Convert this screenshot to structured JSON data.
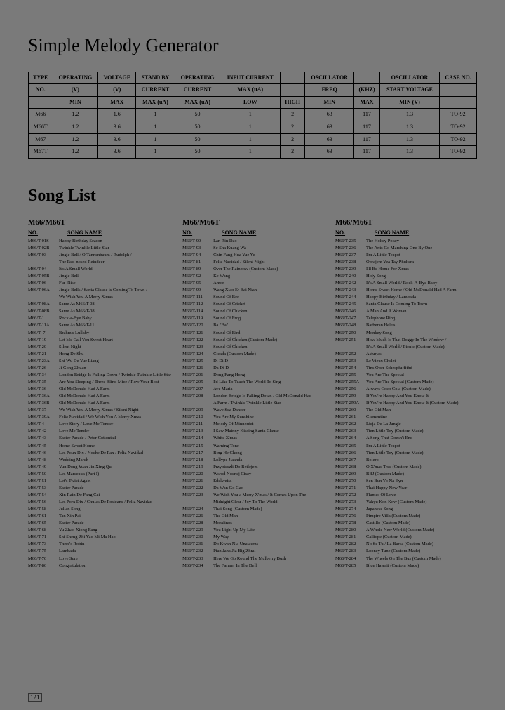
{
  "page": {
    "title": "Simple Melody Generator",
    "subtitle": "Song List",
    "page_number": "121"
  },
  "spec_table": {
    "headers_row1": [
      "TYPE",
      "OPERATING",
      "VOLTAGE",
      "STAND BY",
      "OPERATING",
      "INPUT CURRENT",
      "",
      "OSCILLATOR",
      "",
      "OSCILLATOR",
      "CASE NO."
    ],
    "headers_row2": [
      "NO.",
      "(V)",
      "(V)",
      "CURRENT",
      "CURRENT",
      "MAX (uA)",
      "",
      "FREQ",
      "(KHZ)",
      "START VOLTAGE",
      ""
    ],
    "headers_row3": [
      "",
      "MIN",
      "MAX",
      "MAX (uA)",
      "MAX (uA)",
      "LOW",
      "HIGH",
      "MIN",
      "MAX",
      "MIN (V)",
      ""
    ],
    "rows": [
      [
        "M66",
        "1.2",
        "1.6",
        "1",
        "50",
        "1",
        "2",
        "63",
        "117",
        "1.3",
        "TO-92"
      ],
      [
        "M66T",
        "1.2",
        "3.6",
        "1",
        "50",
        "1",
        "2",
        "63",
        "117",
        "1.3",
        "TO-92"
      ],
      [
        "M67",
        "1.2",
        "3.6",
        "1",
        "50",
        "1",
        "2",
        "63",
        "117",
        "1.3",
        "TO-92"
      ],
      [
        "M67T",
        "1.2",
        "3.6",
        "1",
        "50",
        "1",
        "2",
        "63",
        "117",
        "1.3",
        "TO-92"
      ]
    ]
  },
  "songlist": {
    "col_heading": "M66/M66T",
    "col_sub_no": "NO.",
    "col_sub_name": "SONG NAME",
    "cols": [
      [
        {
          "no": "M66/T-01S",
          "nm": "Happy Birthday Season"
        },
        {
          "no": "M66/T-02B",
          "nm": "Twinkle Twinkle Little Star"
        },
        {
          "no": "M66/T-03",
          "nm": "Jingle Bell / O Tannenbaum / Rudolph /"
        },
        {
          "no": "",
          "nm": "The Red-nosed Reindeer"
        },
        {
          "no": "M66/T-04",
          "nm": "It's A Small World"
        },
        {
          "no": "M66/T-05B",
          "nm": "Jingle Bell"
        },
        {
          "no": "M66/T-06",
          "nm": "Fur Elise"
        },
        {
          "no": "M66/T-06A",
          "nm": "Jingle Bells / Santa Clause is Coming To Town /"
        },
        {
          "no": "",
          "nm": "We Wish You A Merry X'mas"
        },
        {
          "no": "M66/T-08A",
          "nm": "Same As M66/T-08"
        },
        {
          "no": "M66/T-08B",
          "nm": "Same As M66/T-08"
        },
        {
          "no": "M66/T-1",
          "nm": "Rock-a-Bye Baby"
        },
        {
          "no": "M66/T-11A",
          "nm": "Same As M66/T-11"
        },
        {
          "no": "M66/T- 7",
          "nm": "Brahm's Lullaby"
        },
        {
          "no": "M66/T-19",
          "nm": "Let Me Call You Sweet Heart"
        },
        {
          "no": "M66/T-20",
          "nm": "Silent Night"
        },
        {
          "no": "M66/T-21",
          "nm": "Hong De Shu"
        },
        {
          "no": "M66/T-23A",
          "nm": "Shi Wu De Yue Liang"
        },
        {
          "no": "M66/T-26",
          "nm": "Ji Gong Zhuan"
        },
        {
          "no": "M66/T-34",
          "nm": "London Bridge Is Falling Down / Twinkle Twinkle Little Star"
        },
        {
          "no": "M66/T-35",
          "nm": "Are You Sleeping / Three Blind Mice / Row Your Boat"
        },
        {
          "no": "M66/T-36",
          "nm": "Old McDonald Had A Farm"
        },
        {
          "no": "M66/T-36A",
          "nm": "Old McDonald Had A Farm"
        },
        {
          "no": "M66/T-36B",
          "nm": "Old McDonald Had A Farm"
        },
        {
          "no": "M66/T-37",
          "nm": "We Wish You A Merry X'mas / Silent Night"
        },
        {
          "no": "M66/T-39A",
          "nm": "Feliz Navidad / We Wish You A Merry Xmas"
        },
        {
          "no": "M66/T-4",
          "nm": "Love Story / Love Me Tender"
        },
        {
          "no": "M66/T-42",
          "nm": "Love Me Tender"
        },
        {
          "no": "M66/T-43",
          "nm": "Easter Parade / Peter Cottontail"
        },
        {
          "no": "M66/T-45",
          "nm": "Home Sweet Home"
        },
        {
          "no": "M66/T-46",
          "nm": "Les Poux Dix / Noche De Pax / Feliz Navidad"
        },
        {
          "no": "M66/T-48",
          "nm": "Wedding March"
        },
        {
          "no": "M66/T-49",
          "nm": "Yun Dong Yuan Jin Xing Qu"
        },
        {
          "no": "M66/T-50",
          "nm": "Les Marceaux (Part I)"
        },
        {
          "no": "M66/T-51",
          "nm": "Let's Twist Again"
        },
        {
          "no": "M66/T-53",
          "nm": "Easter Parade"
        },
        {
          "no": "M66/T-54",
          "nm": "Xin Rain De Fang Cai"
        },
        {
          "no": "M66/T-56",
          "nm": "Les Porx Dix / Chulas De Posicans / Feliz Navidad"
        },
        {
          "no": "M66/T-58",
          "nm": "Julian Song"
        },
        {
          "no": "M66/T-61",
          "nm": "Tan Xin Pai"
        },
        {
          "no": "M66/T-65",
          "nm": "Easter Parade"
        },
        {
          "no": "M66/T-68",
          "nm": "Yu Zhao Xiong Fang"
        },
        {
          "no": "M66/T-71",
          "nm": "Shi Sheng Zhi Yao Mi Ma Hao"
        },
        {
          "no": "M66/T-73",
          "nm": "There's Robin"
        },
        {
          "no": "M66/T-75",
          "nm": "Lambada"
        },
        {
          "no": "M66/T-76",
          "nm": "Love Sure"
        },
        {
          "no": "M66/T-86",
          "nm": "Congratulation"
        }
      ],
      [
        {
          "no": "M66/T-90",
          "nm": "Lan Rin Dao"
        },
        {
          "no": "M66/T-93",
          "nm": "Se Sha Kuang Wa"
        },
        {
          "no": "M66/T-94",
          "nm": "Chin Fang Hua Yue Ye"
        },
        {
          "no": "M66/T-81",
          "nm": "Feliz Navidad / Silent Night"
        },
        {
          "no": "M66/T-89",
          "nm": "Over The Rainbow (Custom Made)"
        },
        {
          "no": "M66/T-92",
          "nm": "Ke Wang"
        },
        {
          "no": "M66/T-95",
          "nm": "Amor"
        },
        {
          "no": "M66/T-99",
          "nm": "Wang Xiao Er Bai Nian"
        },
        {
          "no": "M66/T-111",
          "nm": "Sound Of Bee"
        },
        {
          "no": "M66/T-112",
          "nm": "Sound Of Cricket"
        },
        {
          "no": "M66/T-114",
          "nm": "Sound Of Chicken"
        },
        {
          "no": "M66/T-119",
          "nm": "Sound Of Frog"
        },
        {
          "no": "M66/T-120",
          "nm": "Ba \"Ba\""
        },
        {
          "no": "M66/T-121",
          "nm": "Sound Of Bird"
        },
        {
          "no": "M66/T-122",
          "nm": "Sound Of Chicken (Custom Made)"
        },
        {
          "no": "M66/T-123",
          "nm": "Sound Of Chicken"
        },
        {
          "no": "M66/T-124",
          "nm": "Cicada (Custom Made)"
        },
        {
          "no": "M66/T-125",
          "nm": "Di Di D"
        },
        {
          "no": "M66/T-126",
          "nm": "Da Di D"
        },
        {
          "no": "M66/T-201",
          "nm": "Dong Fang Hong"
        },
        {
          "no": "M66/T-205",
          "nm": "I'd Like To Teach The World To Sing"
        },
        {
          "no": "M66/T-207",
          "nm": "Ave Maria"
        },
        {
          "no": "M66/T-208",
          "nm": "London Bridge Is Falling Down / Old McDonald Had"
        },
        {
          "no": "",
          "nm": "A Farm / Twinkle Twinkle Little Star"
        },
        {
          "no": "M66/T-209",
          "nm": "Wave Sea Dancer"
        },
        {
          "no": "M66/T-210",
          "nm": "You Are My Sunshine"
        },
        {
          "no": "M66/T-211",
          "nm": "Melody Of Minnerdet"
        },
        {
          "no": "M66/T-213",
          "nm": "I Saw Mainny Kissing Santa Clause"
        },
        {
          "no": "M66/T-214",
          "nm": "White X'mas"
        },
        {
          "no": "M66/T-215",
          "nm": "Warning Tone"
        },
        {
          "no": "M66/T-217",
          "nm": "Bing He Chong"
        },
        {
          "no": "M66/T-218",
          "nm": "Lollype Jiaanda"
        },
        {
          "no": "M66/T-219",
          "nm": "Przybieszli Do Betlejem"
        },
        {
          "no": "M66/T-220",
          "nm": "Wsrod Nocnej Ciszy"
        },
        {
          "no": "M66/T-221",
          "nm": "Edelweiss"
        },
        {
          "no": "M66/T-222",
          "nm": "Da Wan Go Gao"
        },
        {
          "no": "M66/T-223",
          "nm": "We Wish You a Merry X'mas / It Comes Upon The"
        },
        {
          "no": "",
          "nm": "Midnight Clear / Joy To The World"
        },
        {
          "no": "M66/T-224",
          "nm": "Thai Song (Custom Made)"
        },
        {
          "no": "M66/T-226",
          "nm": "The Old Man"
        },
        {
          "no": "M66/T-228",
          "nm": "Moralinos"
        },
        {
          "no": "M66/T-229",
          "nm": "You Light Up My Life"
        },
        {
          "no": "M66/T-230",
          "nm": "My Way"
        },
        {
          "no": "M66/T-231",
          "nm": "Do Kwan Nia Unawerns"
        },
        {
          "no": "M66/T-232",
          "nm": "Pian Jana Jia Big Zhrai"
        },
        {
          "no": "M66/T-233",
          "nm": "Here We Go Round The Mulberry Bush"
        },
        {
          "no": "M66/T-234",
          "nm": "The Farmer In The Dell"
        }
      ],
      [
        {
          "no": "M66/T-235",
          "nm": "The Hokey Pokey"
        },
        {
          "no": "M66/T-236",
          "nm": "The Ants Go Marching One By One"
        },
        {
          "no": "M66/T-237",
          "nm": "I'm A Little Teapot"
        },
        {
          "no": "M66/T-238",
          "nm": "Obrajem Yea Tay Phukera"
        },
        {
          "no": "M66/T-239",
          "nm": "I'll Be Home For Xmas"
        },
        {
          "no": "M66/T-240",
          "nm": "Holy Song"
        },
        {
          "no": "M66/T-242",
          "nm": "It's A Small World / Rock-A-Bye Baby"
        },
        {
          "no": "M66/T-243",
          "nm": "Home Sweet Home / Old McDonald Had A Farm"
        },
        {
          "no": "M66/T-244",
          "nm": "Happy Birthday / Lambada"
        },
        {
          "no": "M66/T-245",
          "nm": "Santa Clause Is Coming To Town"
        },
        {
          "no": "M66/T-246",
          "nm": "A Man And A Woman"
        },
        {
          "no": "M66/T-247",
          "nm": "Telephone Ring"
        },
        {
          "no": "M66/T-248",
          "nm": "Barberan Hele's"
        },
        {
          "no": "M66/T-250",
          "nm": "Monkey Song"
        },
        {
          "no": "M66/T-251",
          "nm": "How Much Is That Doggy In The Window /"
        },
        {
          "no": "",
          "nm": "It's A Small World / Picnic (Custom Made)"
        },
        {
          "no": "M66/T-252",
          "nm": "Asturjas"
        },
        {
          "no": "M66/T-253",
          "nm": "Le Vieux Chslet"
        },
        {
          "no": "M66/T-254",
          "nm": "Tins Oper Schespfuffithd"
        },
        {
          "no": "M66/T-255",
          "nm": "You Are The Special"
        },
        {
          "no": "M66/T-255A",
          "nm": "You Are The Special (Custom Made)"
        },
        {
          "no": "M66/T-256",
          "nm": "Always Coco Cola (Custom Made)"
        },
        {
          "no": "M66/T-259",
          "nm": "If You're Happy And You Know It"
        },
        {
          "no": "M66/T-259A",
          "nm": "If You're Happy And You Know It (Custom Made)"
        },
        {
          "no": "M66/T-260",
          "nm": "The Old Man"
        },
        {
          "no": "M66/T-261",
          "nm": "Clementine"
        },
        {
          "no": "M66/T-262",
          "nm": "Lieja De La Jungle"
        },
        {
          "no": "M66/T-263",
          "nm": "Tien Little Toy (Custom Made)"
        },
        {
          "no": "M66/T-264",
          "nm": "A Song That Doesn't End"
        },
        {
          "no": "M66/T-265",
          "nm": "I'm A Little Teapot"
        },
        {
          "no": "M66/T-266",
          "nm": "Tien Little Toy (Custom Made)"
        },
        {
          "no": "M66/T-267",
          "nm": "Bolero"
        },
        {
          "no": "M66/T-268",
          "nm": "O X'mas Tree (Custom Made)"
        },
        {
          "no": "M66/T-269",
          "nm": "BBJ (Custom Made)"
        },
        {
          "no": "M66/T-270",
          "nm": "Sen Bun Yo Na Eyn"
        },
        {
          "no": "M66/T-271",
          "nm": "Thai Happy New Year"
        },
        {
          "no": "M66/T-272",
          "nm": "Flames Of Love"
        },
        {
          "no": "M66/T-273",
          "nm": "Yakyu Kon Kow (Custom Made)"
        },
        {
          "no": "M66/T-274",
          "nm": "Japanese Song"
        },
        {
          "no": "M66/T-276",
          "nm": "Pimpire Villa (Custom Made)"
        },
        {
          "no": "M66/T-278",
          "nm": "Castillo (Custom Made)"
        },
        {
          "no": "M66/T-280",
          "nm": "A Whole New World (Custom Made)"
        },
        {
          "no": "M66/T-281",
          "nm": "Calliope (Custom Made)"
        },
        {
          "no": "M66/T-282",
          "nm": "No Se Tu / La Barca (Custom Made)"
        },
        {
          "no": "M66/T-283",
          "nm": "Looney Tune (Custom Made)"
        },
        {
          "no": "M66/T-284",
          "nm": "The Wheels On The Bus (Custom Made)"
        },
        {
          "no": "M66/T-285",
          "nm": "Blue Hawaii (Custom Made)"
        }
      ]
    ]
  }
}
